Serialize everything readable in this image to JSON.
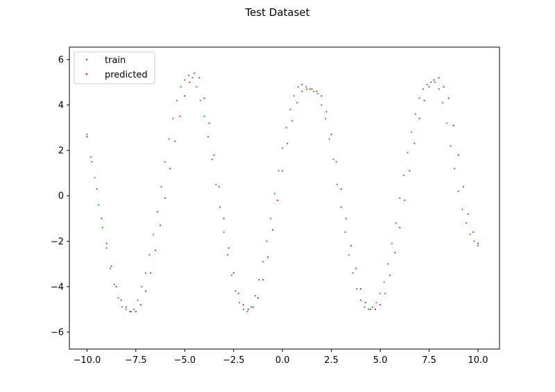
{
  "chart_data": {
    "type": "scatter",
    "title": "Test Dataset",
    "xlabel": "",
    "ylabel": "",
    "xlim": [
      -10.9,
      11.1
    ],
    "ylim": [
      -6.75,
      6.55
    ],
    "xticks": [
      -10.0,
      -7.5,
      -5.0,
      -2.5,
      0.0,
      2.5,
      5.0,
      7.5,
      10.0
    ],
    "xtick_labels": [
      "−10.0",
      "−7.5",
      "−5.0",
      "−2.5",
      "0.0",
      "2.5",
      "5.0",
      "7.5",
      "10.0"
    ],
    "yticks": [
      -6,
      -4,
      -2,
      0,
      2,
      4,
      6
    ],
    "ytick_labels": [
      "−6",
      "−4",
      "−2",
      "0",
      "2",
      "4",
      "6"
    ],
    "grid": false,
    "legend": "upper-left",
    "series": [
      {
        "name": "train",
        "color": "#2ca02c",
        "x": [
          -10.0,
          -9.8,
          -9.6,
          -9.4,
          -9.2,
          -9.0,
          -8.8,
          -8.6,
          -8.4,
          -8.2,
          -8.0,
          -7.8,
          -7.6,
          -7.4,
          -7.2,
          -7.0,
          -6.8,
          -6.6,
          -6.4,
          -6.2,
          -6.0,
          -5.8,
          -5.6,
          -5.4,
          -5.2,
          -5.0,
          -4.8,
          -4.6,
          -4.4,
          -4.2,
          -4.0,
          -3.8,
          -3.6,
          -3.4,
          -3.2,
          -3.0,
          -2.8,
          -2.6,
          -2.4,
          -2.2,
          -2.0,
          -1.8,
          -1.6,
          -1.4,
          -1.2,
          -1.0,
          -0.8,
          -0.6,
          -0.4,
          -0.2,
          0.0,
          0.2,
          0.4,
          0.6,
          0.8,
          1.0,
          1.2,
          1.4,
          1.6,
          1.8,
          2.0,
          2.2,
          2.4,
          2.6,
          2.8,
          3.0,
          3.2,
          3.4,
          3.6,
          3.8,
          4.0,
          4.2,
          4.4,
          4.6,
          4.8,
          5.0,
          5.2,
          5.4,
          5.6,
          5.8,
          6.0,
          6.2,
          6.4,
          6.6,
          6.8,
          7.0,
          7.2,
          7.4,
          7.6,
          7.8,
          8.0,
          8.2,
          8.4,
          8.6,
          8.8,
          9.0,
          9.2,
          9.4,
          9.6,
          9.8,
          10.0
        ],
        "y": [
          2.7,
          1.7,
          0.8,
          -0.4,
          -1.4,
          -2.3,
          -3.2,
          -3.9,
          -4.5,
          -4.9,
          -5.0,
          -5.1,
          -5.0,
          -4.6,
          -4.0,
          -3.4,
          -2.6,
          -1.7,
          -0.7,
          0.4,
          1.5,
          2.5,
          3.4,
          4.2,
          4.8,
          5.1,
          5.3,
          5.2,
          4.8,
          4.2,
          3.5,
          2.6,
          1.6,
          0.5,
          -0.5,
          -1.6,
          -2.6,
          -3.5,
          -4.2,
          -4.7,
          -5.0,
          -5.1,
          -4.9,
          -4.4,
          -3.7,
          -2.9,
          -2.0,
          -1.0,
          0.1,
          1.1,
          2.1,
          3.0,
          3.8,
          4.4,
          4.8,
          4.9,
          4.8,
          4.7,
          4.6,
          4.5,
          4.0,
          3.4,
          2.5,
          1.6,
          0.5,
          -0.5,
          -1.6,
          -2.6,
          -3.4,
          -4.1,
          -4.6,
          -4.9,
          -5.0,
          -4.9,
          -4.7,
          -4.3,
          -3.8,
          -3.0,
          -2.1,
          -1.2,
          -0.1,
          0.9,
          1.9,
          2.8,
          3.6,
          4.3,
          4.7,
          4.9,
          5.0,
          5.0,
          4.7,
          4.1,
          3.2,
          2.2,
          1.2,
          0.2,
          -0.6,
          -1.2,
          -1.7,
          -2.0,
          -2.2
        ]
      },
      {
        "name": "predicted",
        "color": "#d62728",
        "x": [
          -10.0,
          -9.75,
          -9.5,
          -9.25,
          -9.0,
          -8.75,
          -8.5,
          -8.25,
          -8.0,
          -7.75,
          -7.5,
          -7.25,
          -7.0,
          -6.75,
          -6.5,
          -6.25,
          -6.0,
          -5.75,
          -5.5,
          -5.25,
          -5.0,
          -4.75,
          -4.5,
          -4.25,
          -4.0,
          -3.75,
          -3.5,
          -3.25,
          -3.0,
          -2.75,
          -2.5,
          -2.25,
          -2.0,
          -1.75,
          -1.5,
          -1.25,
          -1.0,
          -0.75,
          -0.5,
          -0.25,
          0.0,
          0.25,
          0.5,
          0.75,
          1.0,
          1.25,
          1.5,
          1.75,
          2.0,
          2.25,
          2.5,
          2.75,
          3.0,
          3.25,
          3.5,
          3.75,
          4.0,
          4.25,
          4.5,
          4.75,
          5.0,
          5.25,
          5.5,
          5.75,
          6.0,
          6.25,
          6.5,
          6.75,
          7.0,
          7.25,
          7.5,
          7.75,
          8.0,
          8.25,
          8.5,
          8.75,
          9.0,
          9.25,
          9.5,
          9.75,
          10.0
        ],
        "y": [
          2.6,
          1.5,
          0.3,
          -1.0,
          -2.1,
          -3.1,
          -4.0,
          -4.6,
          -4.9,
          -5.1,
          -5.1,
          -4.8,
          -4.2,
          -3.4,
          -2.4,
          -1.3,
          -0.1,
          1.2,
          2.4,
          3.5,
          4.4,
          5.0,
          5.4,
          5.2,
          4.3,
          3.2,
          1.8,
          0.4,
          -1.0,
          -2.3,
          -3.4,
          -4.3,
          -4.8,
          -5.0,
          -4.9,
          -4.5,
          -3.7,
          -2.7,
          -1.5,
          -0.2,
          1.1,
          2.3,
          3.3,
          4.1,
          4.6,
          4.7,
          4.7,
          4.6,
          4.4,
          3.7,
          2.7,
          1.5,
          0.3,
          -1.0,
          -2.2,
          -3.2,
          -4.1,
          -4.7,
          -5.0,
          -5.0,
          -4.8,
          -4.3,
          -3.5,
          -2.5,
          -1.4,
          -0.2,
          1.1,
          2.3,
          3.4,
          4.2,
          4.8,
          5.1,
          5.2,
          4.8,
          4.3,
          3.1,
          1.8,
          0.4,
          -0.8,
          -1.6,
          -2.1
        ]
      }
    ]
  }
}
